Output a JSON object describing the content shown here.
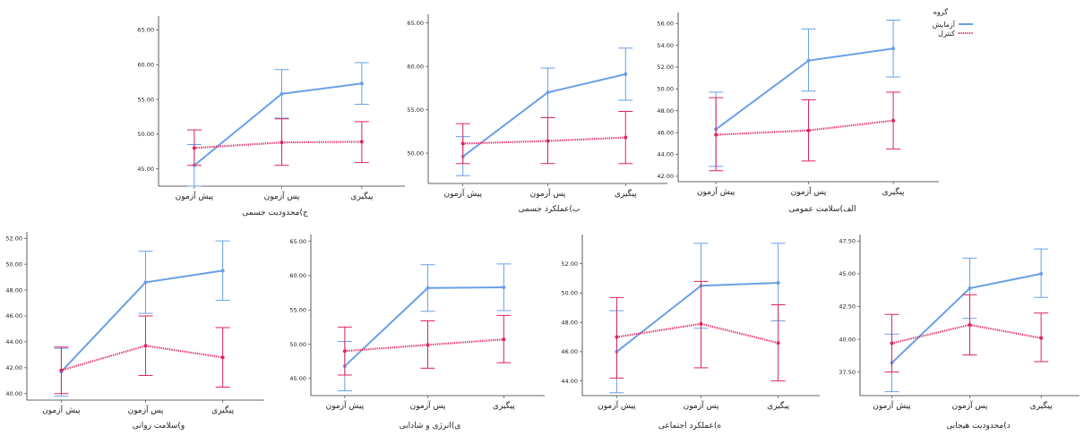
{
  "legend": {
    "title": "گروه",
    "items": [
      {
        "label": "آزمایش",
        "color": "#6aa0e6",
        "style": "solid"
      },
      {
        "label": "کنترل",
        "color": "#e0245e",
        "style": "dotted"
      }
    ]
  },
  "chart_data": [
    {
      "type": "line",
      "xlabel": "ج)محدودیت جسمی",
      "categories": [
        "پیش آزمون",
        "پس آزمون",
        "پیگیری"
      ],
      "yticks": [
        "45.00",
        "50.00",
        "55.00",
        "60.00",
        "65.00"
      ],
      "ylim": [
        42.5,
        67
      ],
      "series": [
        {
          "name": "آزمایش",
          "values": [
            45.5,
            55.8,
            57.3
          ],
          "err_low": [
            42.5,
            52.3,
            54.3
          ],
          "err_high": [
            48.5,
            59.3,
            60.3
          ]
        },
        {
          "name": "کنترل",
          "values": [
            48.0,
            48.8,
            48.9
          ],
          "err_low": [
            45.5,
            45.5,
            45.9
          ],
          "err_high": [
            50.6,
            52.2,
            51.8
          ]
        }
      ]
    },
    {
      "type": "line",
      "xlabel": "ب)عملکرد جسمی",
      "categories": [
        "پیش آزمون",
        "پس آزمون",
        "پیگیری"
      ],
      "yticks": [
        "50.00",
        "55.00",
        "60.00",
        "65.00"
      ],
      "ylim": [
        46.5,
        66
      ],
      "series": [
        {
          "name": "آزمایش",
          "values": [
            49.6,
            57.0,
            59.1
          ],
          "err_low": [
            47.4,
            54.1,
            56.1
          ],
          "err_high": [
            51.9,
            59.8,
            62.1
          ]
        },
        {
          "name": "کنترل",
          "values": [
            51.1,
            51.4,
            51.8
          ],
          "err_low": [
            48.8,
            48.8,
            48.8
          ],
          "err_high": [
            53.4,
            54.1,
            54.8
          ]
        }
      ]
    },
    {
      "type": "line",
      "xlabel": "الف)سلامت عمومی",
      "categories": [
        "پیش آزمون",
        "پس آزمون",
        "پیگیری"
      ],
      "yticks": [
        "42.00",
        "44.00",
        "46.00",
        "48.00",
        "50.00",
        "52.00",
        "54.00",
        "56.00"
      ],
      "ylim": [
        41.5,
        57
      ],
      "series": [
        {
          "name": "آزمایش",
          "values": [
            46.3,
            52.6,
            53.7
          ],
          "err_low": [
            42.9,
            49.8,
            51.1
          ],
          "err_high": [
            49.7,
            55.5,
            56.3
          ]
        },
        {
          "name": "کنترل",
          "values": [
            45.8,
            46.2,
            47.1
          ],
          "err_low": [
            42.5,
            43.4,
            44.5
          ],
          "err_high": [
            49.2,
            49.0,
            49.7
          ]
        }
      ]
    },
    {
      "type": "line",
      "xlabel": "و)سلامت روانی",
      "categories": [
        "پیش آزمون",
        "پس آزمون",
        "پیگیری"
      ],
      "yticks": [
        "40.00",
        "42.00",
        "44.00",
        "46.00",
        "48.00",
        "50.00",
        "52.00"
      ],
      "ylim": [
        39.5,
        52.5
      ],
      "series": [
        {
          "name": "آزمایش",
          "values": [
            41.7,
            48.6,
            49.5
          ],
          "err_low": [
            39.8,
            46.2,
            47.2
          ],
          "err_high": [
            43.5,
            51.0,
            51.8
          ]
        },
        {
          "name": "کنترل",
          "values": [
            41.8,
            43.7,
            42.8
          ],
          "err_low": [
            40.0,
            41.4,
            40.5
          ],
          "err_high": [
            43.6,
            46.0,
            45.1
          ]
        }
      ]
    },
    {
      "type": "line",
      "xlabel": "ی)انرژی و شادابی",
      "categories": [
        "پیش آزمون",
        "پس آزمون",
        "پیگیری"
      ],
      "yticks": [
        "45.00",
        "50.00",
        "55.00",
        "60.00",
        "65.00"
      ],
      "ylim": [
        42.5,
        66
      ],
      "series": [
        {
          "name": "آزمایش",
          "values": [
            46.8,
            58.2,
            58.3
          ],
          "err_low": [
            43.2,
            54.8,
            54.9
          ],
          "err_high": [
            50.4,
            61.6,
            61.7
          ]
        },
        {
          "name": "کنترل",
          "values": [
            49.0,
            49.9,
            50.7
          ],
          "err_low": [
            45.5,
            46.5,
            47.3
          ],
          "err_high": [
            52.5,
            53.4,
            54.2
          ]
        }
      ]
    },
    {
      "type": "line",
      "xlabel": "ه)عملکرد اجتماعی",
      "categories": [
        "پیش آزمون",
        "پس آزمون",
        "پیگیری"
      ],
      "yticks": [
        "44.00",
        "46.00",
        "48.00",
        "50.00",
        "52.00"
      ],
      "ylim": [
        43,
        54
      ],
      "series": [
        {
          "name": "آزمایش",
          "values": [
            46.0,
            50.5,
            50.7
          ],
          "err_low": [
            43.2,
            47.6,
            48.1
          ],
          "err_high": [
            48.8,
            53.4,
            53.4
          ]
        },
        {
          "name": "کنترل",
          "values": [
            47.0,
            47.9,
            46.6
          ],
          "err_low": [
            44.2,
            44.9,
            44.0
          ],
          "err_high": [
            49.7,
            50.8,
            49.2
          ]
        }
      ]
    },
    {
      "type": "line",
      "xlabel": "د)محدودیت هیجانی",
      "categories": [
        "پیش آزمون",
        "پس آزمون",
        "پیگیری"
      ],
      "yticks": [
        "37.50",
        "40.00",
        "42.50",
        "45.00",
        "47.50"
      ],
      "ylim": [
        35.7,
        48
      ],
      "series": [
        {
          "name": "آزمایش",
          "values": [
            38.2,
            43.9,
            45.0
          ],
          "err_low": [
            36.0,
            41.6,
            43.2
          ],
          "err_high": [
            40.4,
            46.2,
            46.9
          ]
        },
        {
          "name": "کنترل",
          "values": [
            39.7,
            41.1,
            40.1
          ],
          "err_low": [
            37.5,
            38.8,
            38.3
          ],
          "err_high": [
            41.9,
            43.4,
            42.0
          ]
        }
      ]
    }
  ]
}
